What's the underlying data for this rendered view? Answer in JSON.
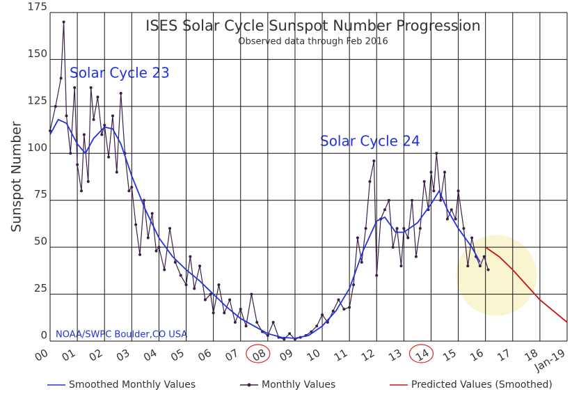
{
  "chart_data": {
    "type": "line",
    "title": "ISES Solar Cycle Sunspot Number Progression",
    "subtitle": "Observed data through Feb 2016",
    "y_label": "Sunspot Number",
    "annotations": [
      "Solar Cycle 23",
      "Solar Cycle 24",
      "NOAA/SWPC Boulder,CO USA"
    ],
    "xlim": [
      2000,
      2019
    ],
    "ylim": [
      0,
      175
    ],
    "xticks": [
      {
        "value": 2000,
        "label": "00"
      },
      {
        "value": 2001,
        "label": "01"
      },
      {
        "value": 2002,
        "label": "02"
      },
      {
        "value": 2003,
        "label": "03"
      },
      {
        "value": 2004,
        "label": "04"
      },
      {
        "value": 2005,
        "label": "05"
      },
      {
        "value": 2006,
        "label": "06"
      },
      {
        "value": 2007,
        "label": "07"
      },
      {
        "value": 2008,
        "label": "08"
      },
      {
        "value": 2009,
        "label": "09"
      },
      {
        "value": 2010,
        "label": "10"
      },
      {
        "value": 2011,
        "label": "11"
      },
      {
        "value": 2012,
        "label": "12"
      },
      {
        "value": 2013,
        "label": "13"
      },
      {
        "value": 2014,
        "label": "14"
      },
      {
        "value": 2015,
        "label": "15"
      },
      {
        "value": 2016,
        "label": "16"
      },
      {
        "value": 2017,
        "label": "17"
      },
      {
        "value": 2018,
        "label": "18"
      },
      {
        "value": 2019,
        "label": "Jan-19"
      }
    ],
    "yticks": [
      0,
      25,
      50,
      75,
      100,
      125,
      150,
      175
    ],
    "grid": true,
    "series": [
      {
        "name": "Smoothed Monthly Values",
        "color": "#2233dd",
        "x": [
          2000.0,
          2000.3,
          2000.6,
          2001.0,
          2001.3,
          2001.6,
          2002.0,
          2002.3,
          2002.6,
          2003.0,
          2003.5,
          2004.0,
          2004.5,
          2005.0,
          2005.5,
          2006.0,
          2006.5,
          2007.0,
          2007.5,
          2008.0,
          2008.5,
          2009.0,
          2009.5,
          2010.0,
          2010.5,
          2011.0,
          2011.5,
          2012.0,
          2012.3,
          2012.7,
          2013.0,
          2013.5,
          2014.0,
          2014.3,
          2014.6,
          2015.0,
          2015.5,
          2015.8
        ],
        "values": [
          110,
          118,
          116,
          105,
          100,
          108,
          114,
          113,
          105,
          88,
          70,
          55,
          45,
          38,
          32,
          25,
          18,
          12,
          8,
          4,
          2,
          1.5,
          3,
          8,
          16,
          28,
          48,
          64,
          66,
          58,
          58,
          63,
          73,
          80,
          70,
          60,
          50,
          42
        ]
      },
      {
        "name": "Monthly Values",
        "color": "#3a1f4a",
        "x": [
          2000.0,
          2000.2,
          2000.4,
          2000.5,
          2000.6,
          2000.75,
          2000.9,
          2001.0,
          2001.15,
          2001.25,
          2001.4,
          2001.5,
          2001.6,
          2001.75,
          2001.9,
          2002.0,
          2002.15,
          2002.3,
          2002.45,
          2002.6,
          2002.75,
          2002.9,
          2003.0,
          2003.15,
          2003.3,
          2003.45,
          2003.6,
          2003.75,
          2003.9,
          2004.0,
          2004.2,
          2004.4,
          2004.6,
          2004.8,
          2005.0,
          2005.15,
          2005.3,
          2005.5,
          2005.7,
          2005.9,
          2006.0,
          2006.2,
          2006.4,
          2006.6,
          2006.8,
          2007.0,
          2007.2,
          2007.4,
          2007.6,
          2007.8,
          2008.0,
          2008.2,
          2008.4,
          2008.6,
          2008.8,
          2009.0,
          2009.2,
          2009.4,
          2009.6,
          2009.8,
          2010.0,
          2010.2,
          2010.4,
          2010.6,
          2010.8,
          2011.0,
          2011.15,
          2011.3,
          2011.45,
          2011.6,
          2011.75,
          2011.9,
          2012.0,
          2012.15,
          2012.3,
          2012.45,
          2012.6,
          2012.75,
          2012.9,
          2013.0,
          2013.15,
          2013.3,
          2013.45,
          2013.6,
          2013.75,
          2013.9,
          2014.0,
          2014.1,
          2014.2,
          2014.35,
          2014.5,
          2014.6,
          2014.75,
          2014.9,
          2015.0,
          2015.2,
          2015.35,
          2015.5,
          2015.65,
          2015.8,
          2015.95,
          2016.1
        ],
        "values": [
          112,
          125,
          140,
          170,
          120,
          100,
          135,
          94,
          80,
          110,
          85,
          135,
          118,
          130,
          110,
          115,
          98,
          120,
          90,
          132,
          100,
          80,
          82,
          62,
          46,
          75,
          55,
          68,
          48,
          50,
          38,
          60,
          42,
          35,
          30,
          45,
          28,
          40,
          22,
          25,
          15,
          30,
          15,
          22,
          10,
          17,
          8,
          25,
          10,
          5,
          3,
          10,
          2,
          1,
          4,
          1,
          2,
          3,
          5,
          8,
          14,
          10,
          16,
          22,
          17,
          18,
          30,
          55,
          42,
          60,
          85,
          96,
          35,
          65,
          70,
          75,
          50,
          60,
          40,
          60,
          55,
          75,
          45,
          60,
          85,
          70,
          90,
          80,
          100,
          75,
          90,
          65,
          70,
          65,
          80,
          60,
          40,
          55,
          45,
          40,
          45,
          38
        ]
      },
      {
        "name": "Predicted Values (Smoothed)",
        "color": "#cc1111",
        "x": [
          2016.0,
          2016.5,
          2017.0,
          2017.5,
          2018.0,
          2018.5,
          2019.0
        ],
        "values": [
          50,
          45,
          38,
          30,
          22,
          16,
          10
        ]
      }
    ]
  }
}
